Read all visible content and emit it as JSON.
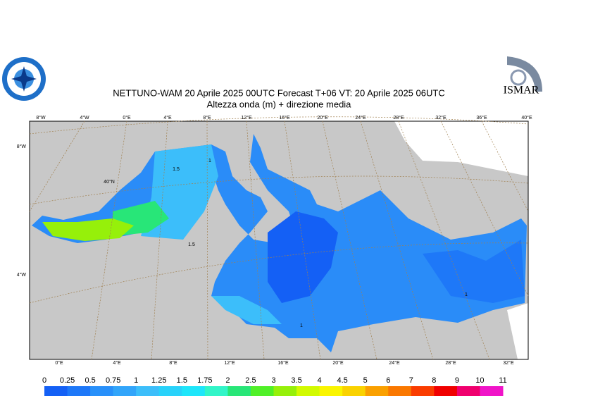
{
  "header": {
    "title": "NETTUNO-WAM  20   Aprile  2025 00UTC Forecast T+06 VT: 20   Aprile  2025 06UTC",
    "subtitle": "Altezza onda (m) + direzione media"
  },
  "logo": {
    "text": "ISMAR"
  },
  "map": {
    "top_labels": [
      "8°W",
      "4°W",
      "0°E",
      "4°E",
      "8°E",
      "12°E",
      "16°E",
      "20°E",
      "24°E",
      "28°E",
      "32°E",
      "36°E",
      "40°E"
    ],
    "bottom_labels": [
      "0°E",
      "4°E",
      "8°E",
      "12°E",
      "16°E",
      "20°E",
      "24°E",
      "28°E",
      "32°E"
    ],
    "left_labels": [
      "8°W",
      "4°W"
    ],
    "lat_label": "40°N",
    "contour_labels": [
      "1.5",
      "1",
      "1.5",
      "1",
      "1"
    ]
  },
  "colorbar": {
    "levels": [
      0,
      0.25,
      0.5,
      0.75,
      1,
      1.25,
      1.5,
      1.75,
      2,
      2.5,
      3,
      3.5,
      4,
      4.5,
      5,
      6,
      7,
      8,
      9,
      10,
      11
    ],
    "colors": [
      "#1460f5",
      "#1e78f8",
      "#2890fa",
      "#32a5fa",
      "#3cbefa",
      "#28d2fa",
      "#1ee6fa",
      "#32f5c8",
      "#28e678",
      "#50f028",
      "#96f00a",
      "#d2fa00",
      "#faf500",
      "#fad200",
      "#faa000",
      "#fa7800",
      "#fa3c00",
      "#f00000",
      "#f0006e",
      "#f014c8"
    ]
  }
}
